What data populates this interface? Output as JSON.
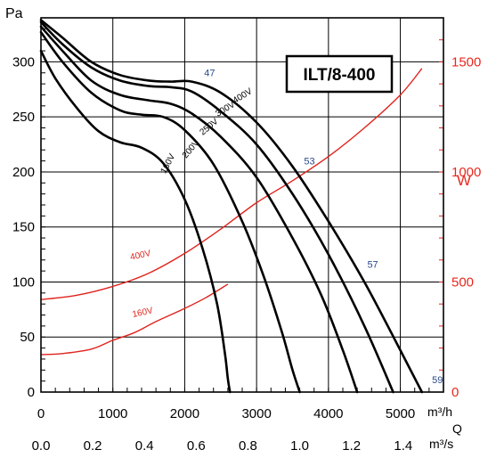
{
  "chart_data": {
    "type": "line",
    "title": "ILT/8-400",
    "y_left_label": "Pa",
    "y_right_label": "W",
    "x_label_top_unit": "m³/h",
    "x_label_bottom_unit": "m³/s",
    "x_label_q": "Q",
    "xlim": [
      0,
      5600
    ],
    "ylim_left": [
      0,
      340
    ],
    "ylim_right": [
      0,
      1700
    ],
    "x_ticks": [
      "0",
      "1000",
      "2000",
      "3000",
      "4000",
      "5000"
    ],
    "x_ticks_bottom": [
      "0.0",
      "0.2",
      "0.4",
      "0.6",
      "0.8",
      "1.0",
      "1.2",
      "1.4"
    ],
    "y_ticks_left": [
      "0",
      "50",
      "100",
      "150",
      "200",
      "250",
      "300"
    ],
    "y_ticks_right": [
      "0",
      "500",
      "1000",
      "1500"
    ],
    "grid": true,
    "pressure_series": [
      {
        "name": "400V",
        "x": [
          0,
          300,
          700,
          1100,
          1500,
          1800,
          2100,
          2500,
          3000,
          3500,
          4000,
          4500,
          5000,
          5300
        ],
        "y": [
          338,
          322,
          300,
          288,
          283,
          282,
          282,
          272,
          245,
          205,
          155,
          100,
          38,
          0
        ]
      },
      {
        "name": "300V",
        "x": [
          0,
          300,
          700,
          1100,
          1500,
          1800,
          2100,
          2500,
          3000,
          3500,
          4000,
          4500,
          4900
        ],
        "y": [
          336,
          316,
          295,
          283,
          278,
          277,
          273,
          255,
          225,
          180,
          125,
          60,
          0
        ]
      },
      {
        "name": "250V",
        "x": [
          0,
          300,
          700,
          1100,
          1500,
          1800,
          2100,
          2500,
          3000,
          3500,
          3900,
          4200,
          4400
        ],
        "y": [
          332,
          310,
          283,
          270,
          265,
          262,
          253,
          232,
          195,
          140,
          88,
          38,
          0
        ]
      },
      {
        "name": "200V",
        "x": [
          0,
          300,
          700,
          1100,
          1400,
          1700,
          2000,
          2400,
          2800,
          3100,
          3350,
          3500,
          3600
        ],
        "y": [
          327,
          300,
          272,
          256,
          252,
          250,
          238,
          207,
          155,
          105,
          55,
          20,
          0
        ]
      },
      {
        "name": "160V",
        "x": [
          0,
          200,
          500,
          800,
          1100,
          1400,
          1700,
          2000,
          2250,
          2450,
          2560,
          2600,
          2630
        ],
        "y": [
          310,
          285,
          258,
          237,
          227,
          222,
          208,
          175,
          130,
          80,
          35,
          12,
          0
        ]
      }
    ],
    "power_series": [
      {
        "name": "400V",
        "x": [
          0,
          500,
          1000,
          1500,
          2000,
          2500,
          3000,
          3500,
          4000,
          4500,
          5000,
          5300
        ],
        "y": [
          420,
          440,
          480,
          540,
          630,
          740,
          860,
          960,
          1070,
          1200,
          1350,
          1470
        ]
      },
      {
        "name": "160V",
        "x": [
          0,
          300,
          700,
          1000,
          1300,
          1600,
          2000,
          2300,
          2600
        ],
        "y": [
          170,
          175,
          195,
          235,
          270,
          320,
          380,
          430,
          490
        ]
      }
    ],
    "noise_labels": [
      "47",
      "53",
      "57",
      "59"
    ],
    "pressure_curve_labels": [
      "400V",
      "300V",
      "250V",
      "200V",
      "160V"
    ],
    "power_curve_labels": [
      "400V",
      "160V"
    ]
  }
}
